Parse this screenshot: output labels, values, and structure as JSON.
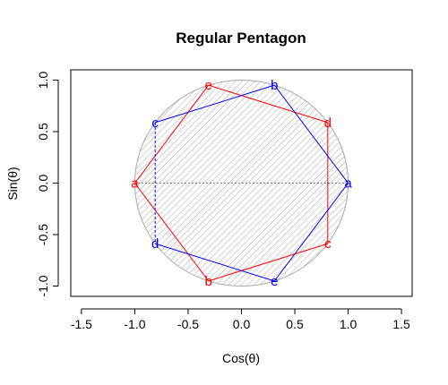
{
  "chart_data": {
    "type": "line",
    "title": "Regular Pentagon",
    "xlabel": "Cos(θ)",
    "ylabel": "Sin(θ)",
    "xlim": [
      -1.6,
      1.6
    ],
    "ylim": [
      -1.1,
      1.1
    ],
    "xticks": [
      {
        "value": -1.5,
        "label": "-1.5"
      },
      {
        "value": -1.0,
        "label": "-1.0"
      },
      {
        "value": -0.5,
        "label": "-0.5"
      },
      {
        "value": 0.0,
        "label": "0.0"
      },
      {
        "value": 0.5,
        "label": "0.5"
      },
      {
        "value": 1.0,
        "label": "1.0"
      },
      {
        "value": 1.5,
        "label": "1.5"
      }
    ],
    "yticks": [
      {
        "value": -1.0,
        "label": "-1.0"
      },
      {
        "value": -0.5,
        "label": "-0.5"
      },
      {
        "value": 0.0,
        "label": "0.0"
      },
      {
        "value": 0.5,
        "label": "0.5"
      },
      {
        "value": 1.0,
        "label": "1.0"
      }
    ],
    "circle": {
      "center": [
        0,
        0
      ],
      "radius": 1,
      "fill": "hatched",
      "color": "#a9a9a9"
    },
    "reference_line": {
      "x": [
        -1,
        1
      ],
      "y": [
        0,
        0
      ],
      "style": "dotted",
      "color": "#000000"
    },
    "series": [
      {
        "color": "#ff0000",
        "labels": [
          "a",
          "b",
          "c",
          "d",
          "e"
        ],
        "x": [
          -1.0,
          -0.309,
          0.809,
          0.809,
          -0.309
        ],
        "y": [
          0.0,
          -0.951,
          -0.588,
          0.588,
          0.951
        ],
        "edges": "polygon",
        "style": "solid"
      },
      {
        "color": "#0000ff",
        "labels": [
          "a",
          "b",
          "c",
          "d",
          "e"
        ],
        "x": [
          1.0,
          0.309,
          -0.809,
          -0.809,
          0.309
        ],
        "y": [
          0.0,
          0.951,
          0.588,
          -0.588,
          -0.951
        ],
        "edges": "polygon",
        "style": "mixed",
        "dashed_edges": [
          [
            2,
            3
          ]
        ]
      }
    ]
  }
}
